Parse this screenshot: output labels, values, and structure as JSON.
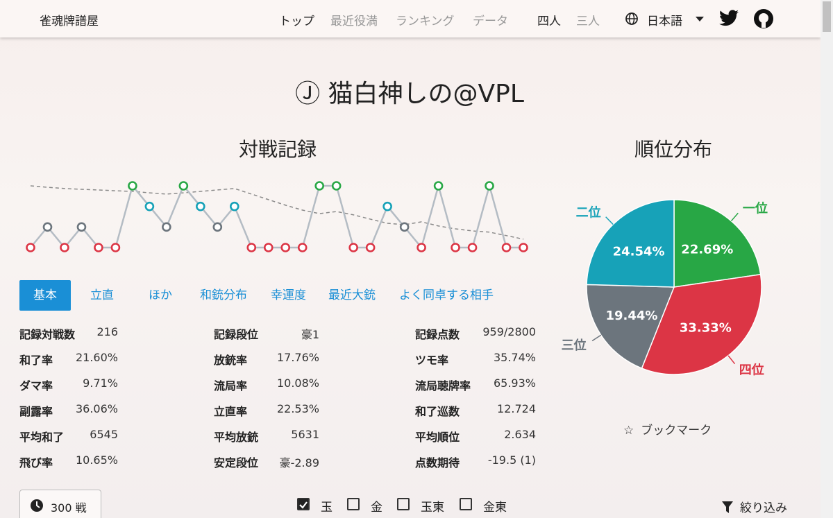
{
  "nav": {
    "brand": "雀魂牌譜屋",
    "links": [
      "トップ",
      "最近役満",
      "ランキング",
      "データ"
    ],
    "modes": [
      "四人",
      "三人"
    ],
    "language": "日本語"
  },
  "player": {
    "title": "Ⓙ 猫白神しの@VPL"
  },
  "chart_data": [
    {
      "type": "line",
      "title": "対戦記録",
      "values": [
        4,
        3,
        4,
        3,
        4,
        4,
        1,
        2,
        3,
        1,
        2,
        3,
        2,
        4,
        4,
        4,
        4,
        1,
        1,
        4,
        4,
        2,
        3,
        4,
        1,
        4,
        4,
        1,
        4,
        4
      ],
      "trend": [
        1.0,
        1.07,
        1.13,
        1.17,
        1.2,
        1.24,
        1.27,
        1.34,
        1.4,
        1.34,
        1.27,
        1.2,
        1.13,
        1.4,
        1.67,
        1.94,
        2.18,
        2.35,
        2.25,
        2.41,
        2.62,
        2.82,
        2.89,
        2.75,
        2.95,
        3.09,
        3.19,
        3.25,
        3.42,
        3.59
      ],
      "ylim": [
        4,
        1
      ],
      "colors": [
        "#28a745",
        "#17a2b8",
        "#6c757d",
        "#dc3545"
      ],
      "line_color": "#b4bcc4",
      "trend_color": "#8a8a8a"
    },
    {
      "type": "pie",
      "title": "順位分布",
      "categories": [
        "一位",
        "四位",
        "三位",
        "二位"
      ],
      "values": [
        22.69,
        33.33,
        19.44,
        24.54
      ],
      "value_labels": [
        "22.69%",
        "33.33%",
        "19.44%",
        "24.54%"
      ],
      "colors": [
        "#28a745",
        "#dc3545",
        "#6c757d",
        "#17a2b8"
      ]
    }
  ],
  "tabs": [
    "基本",
    "立直",
    "ほか",
    "和銃分布",
    "幸運度",
    "最近大銃",
    "よく同卓する相手"
  ],
  "stats": [
    [
      [
        "記録対戦数",
        "216"
      ],
      [
        "和了率",
        "21.60%"
      ],
      [
        "ダマ率",
        "9.71%"
      ],
      [
        "副露率",
        "36.06%"
      ],
      [
        "平均和了",
        "6545"
      ],
      [
        "飛び率",
        "10.65%"
      ]
    ],
    [
      [
        "記録段位",
        "豪1"
      ],
      [
        "放銃率",
        "17.76%"
      ],
      [
        "流局率",
        "10.08%"
      ],
      [
        "立直率",
        "22.53%"
      ],
      [
        "平均放銃",
        "5631"
      ],
      [
        "安定段位",
        "豪-2.89"
      ]
    ],
    [
      [
        "記録点数",
        "959/2800"
      ],
      [
        "ツモ率",
        "35.74%"
      ],
      [
        "流局聴牌率",
        "65.93%"
      ],
      [
        "和了巡数",
        "12.724"
      ],
      [
        "平均順位",
        "2.634"
      ],
      [
        "点数期待",
        "-19.5 (1)"
      ]
    ]
  ],
  "games_button": "300 戦",
  "filters": [
    {
      "label": "玉",
      "checked": true
    },
    {
      "label": "金",
      "checked": false
    },
    {
      "label": "玉東",
      "checked": false
    },
    {
      "label": "金東",
      "checked": false
    }
  ],
  "filter_button": "絞り込み",
  "bookmark": "ブックマーク"
}
